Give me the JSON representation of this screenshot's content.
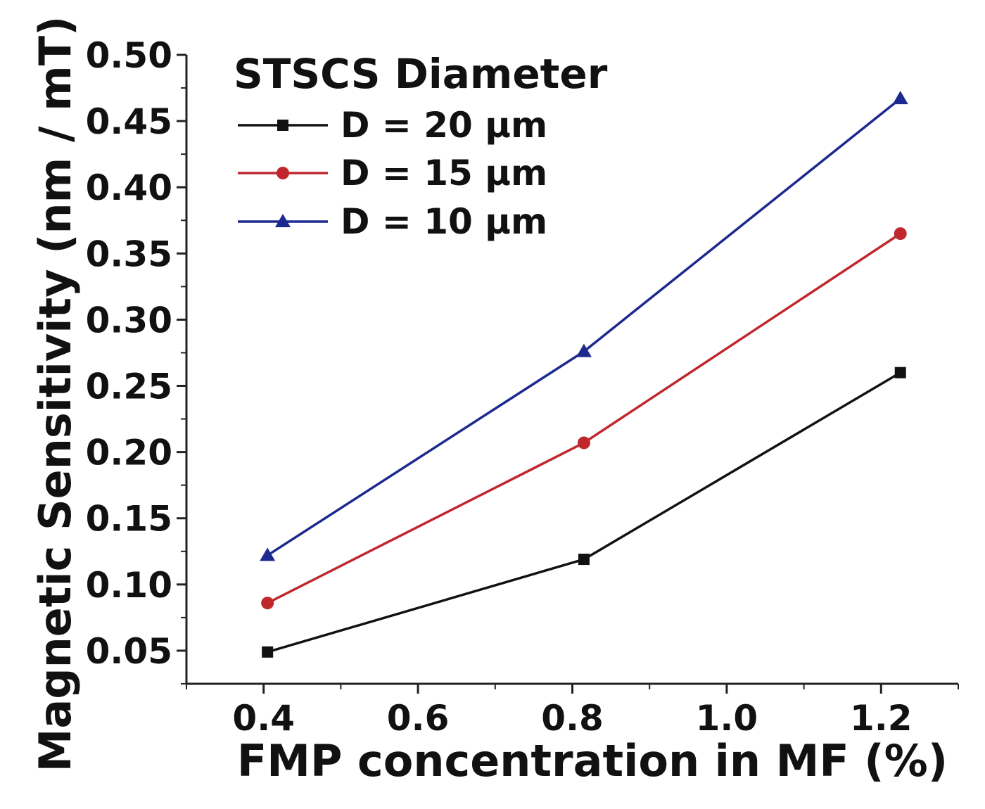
{
  "chart_data": {
    "type": "line",
    "title": "",
    "xlabel": "FMP concentration in MF (%)",
    "ylabel": "Magnetic Sensitivity (nm / mT)",
    "xlim": [
      0.3,
      1.3
    ],
    "ylim": [
      0.025,
      0.5
    ],
    "x_ticks": [
      0.4,
      0.6,
      0.8,
      1.0,
      1.2
    ],
    "x_tick_labels": [
      "0.4",
      "0.6",
      "0.8",
      "1.0",
      "1.2"
    ],
    "y_ticks": [
      0.05,
      0.1,
      0.15,
      0.2,
      0.25,
      0.3,
      0.35,
      0.4,
      0.45,
      0.5
    ],
    "y_tick_labels": [
      "0.05",
      "0.10",
      "0.15",
      "0.20",
      "0.25",
      "0.30",
      "0.35",
      "0.40",
      "0.45",
      "0.50"
    ],
    "grid": false,
    "legend_title": "STSCS Diameter",
    "legend_position": "top-left",
    "x": [
      0.405,
      0.815,
      1.225
    ],
    "series": [
      {
        "name": "D = 20 μm",
        "values": [
          0.049,
          0.119,
          0.26
        ],
        "color": "#111111",
        "marker": "square"
      },
      {
        "name": "D = 15 μm",
        "values": [
          0.086,
          0.207,
          0.365
        ],
        "color": "#c0272d",
        "marker": "circle"
      },
      {
        "name": "D = 10 μm",
        "values": [
          0.122,
          0.276,
          0.467
        ],
        "color": "#1c2a8f",
        "marker": "triangle"
      }
    ]
  }
}
